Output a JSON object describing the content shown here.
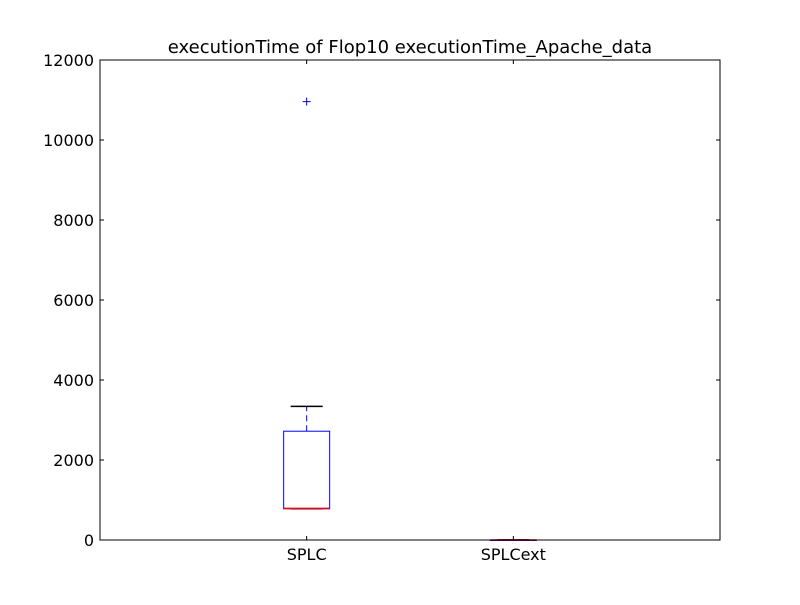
{
  "chart_data": {
    "type": "box",
    "title": "executionTime of Flop10 executionTime_Apache_data",
    "xlabel": "",
    "ylabel": "",
    "ylim": [
      0,
      12000
    ],
    "yticks": [
      0,
      2000,
      4000,
      6000,
      8000,
      10000,
      12000
    ],
    "ytick_labels": [
      "0",
      "2000",
      "4000",
      "6000",
      "8000",
      "10000",
      "12000"
    ],
    "grid": false,
    "categories": [
      "SPLC",
      "SPLCext"
    ],
    "boxes": [
      {
        "name": "SPLC",
        "whisker_low": 780,
        "q1": 780,
        "median": 790,
        "q3": 2720,
        "whisker_high": 3340,
        "outliers": [
          10960
        ]
      },
      {
        "name": "SPLCext",
        "whisker_low": 0,
        "q1": 0,
        "median": 0,
        "q3": 0,
        "whisker_high": 0,
        "outliers": []
      }
    ],
    "colors": {
      "box": "#0000ff",
      "median": "#ff0000",
      "cap": "#000000",
      "outlier": "#0000ff",
      "axis": "#000000"
    }
  }
}
